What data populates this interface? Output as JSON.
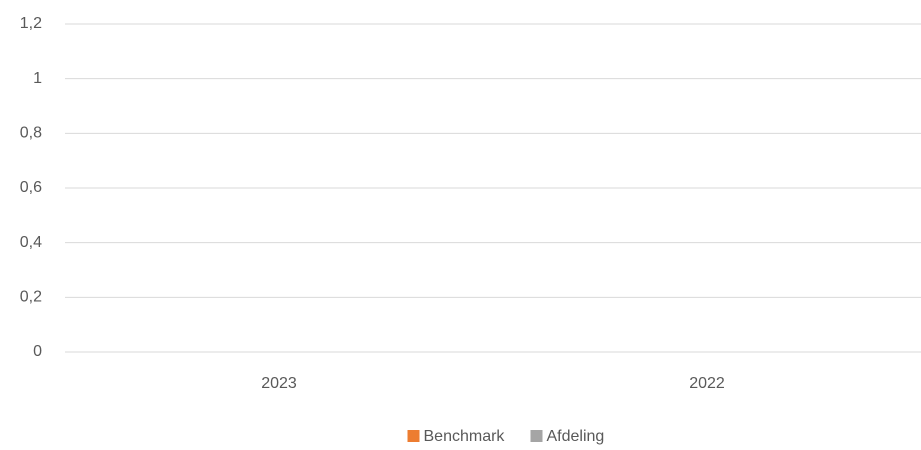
{
  "chart_data": {
    "type": "bar",
    "categories": [
      "2023",
      "2022"
    ],
    "series": [
      {
        "name": "Benchmark",
        "color": "#ed7d31",
        "values": [
          0,
          0
        ]
      },
      {
        "name": "Afdeling",
        "color": "#a5a5a5",
        "values": [
          0,
          0
        ]
      }
    ],
    "ylim": [
      0,
      1.2
    ],
    "yticks": [
      0,
      {
        "value": 0.2,
        "label": "0,2"
      },
      {
        "value": 0.4,
        "label": "0,4"
      },
      {
        "value": 0.6,
        "label": "0,6"
      },
      {
        "value": 0.8,
        "label": "0,8"
      },
      1,
      {
        "value": 1.2,
        "label": "1,2"
      }
    ],
    "grid": true,
    "legend": "bottom"
  }
}
